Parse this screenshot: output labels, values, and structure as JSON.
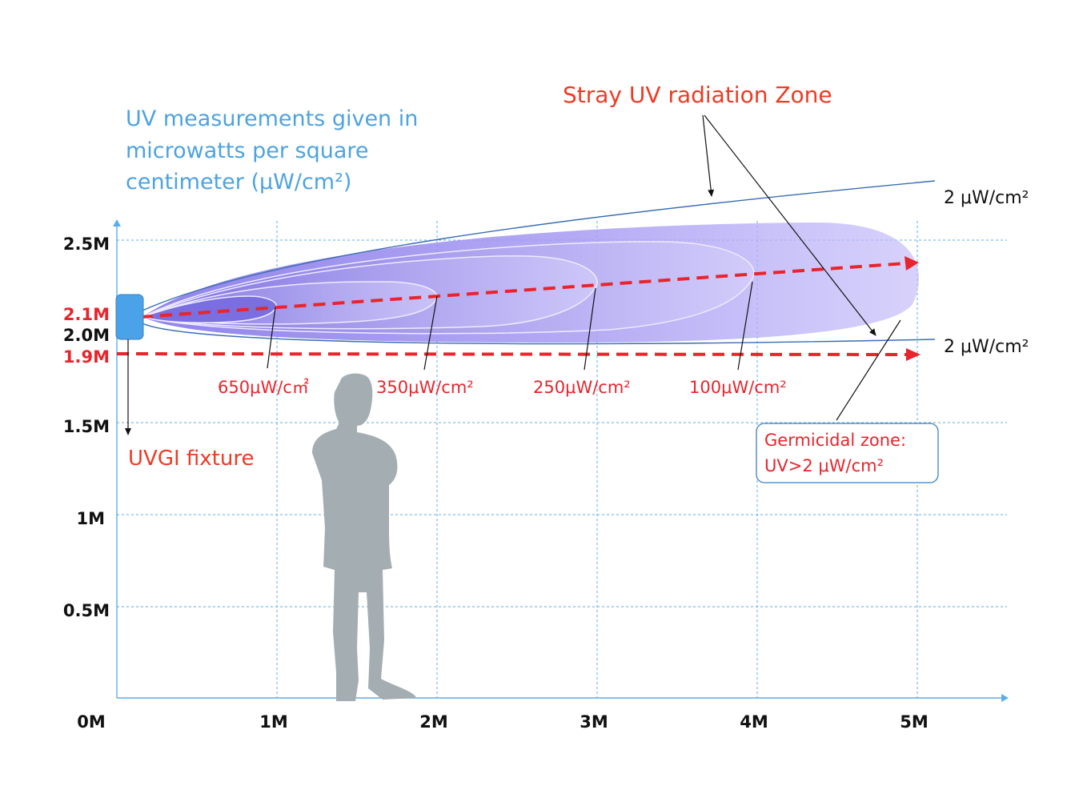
{
  "info_text": {
    "line1": "UV measurements given in",
    "line2": "microwatts per square",
    "line3": "centimeter (μW/cm²)"
  },
  "stray_zone_title": "Stray UV radiation Zone",
  "fixture_label": "UVGI fixture",
  "edge_labels": {
    "upper": "2 μW/cm²",
    "lower": "2 μW/cm²"
  },
  "intensity_labels": [
    "650μW/c㎡",
    "350μW/cm²",
    "250μW/cm²",
    "100μW/cm²"
  ],
  "germicidal_zone": {
    "line1": "Germicidal zone:",
    "line2": "UV>2  μW/cm²"
  },
  "x_ticks": [
    "0M",
    "1M",
    "2M",
    "3M",
    "4M",
    "5M"
  ],
  "y_ticks": {
    "t25": "2.5M",
    "t21": "2.1M",
    "t20": "2.0M",
    "t19": "1.9M",
    "t15": "1.5M",
    "t10": "1M",
    "t05": "0.5M"
  },
  "colors": {
    "grid": "#5aaee8",
    "red_accent": "#e8242c",
    "title_orange": "#ee3b24",
    "info_blue": "#4da3e0",
    "beam_purple": "#9a8cf0",
    "beam_outline": "#3a6db3",
    "fixture_blue": "#4aa3e8",
    "person_gray": "#a3adb2"
  },
  "icons": {
    "fixture": "uvgi-fixture-icon",
    "person": "person-silhouette-icon"
  }
}
